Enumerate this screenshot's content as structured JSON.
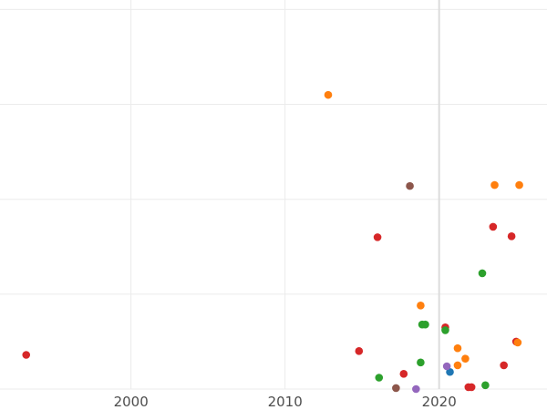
{
  "chart_data": {
    "type": "scatter",
    "title": "",
    "xlabel": "",
    "ylabel": "",
    "grid": true,
    "legend": "none",
    "xlim": [
      1991.5,
      2027
    ],
    "ylim": [
      0,
      41
    ],
    "xticks": [
      2000,
      2010,
      2020
    ],
    "xtick_labels": [
      "2000",
      "2010",
      "2020"
    ],
    "yticks": [
      0,
      10,
      20,
      30,
      40
    ],
    "series": [
      {
        "color": "#d62728",
        "points": [
          {
            "x": 1993.2,
            "y": 3.6
          },
          {
            "x": 2014.8,
            "y": 4.0
          },
          {
            "x": 2016.0,
            "y": 16.0
          },
          {
            "x": 2017.7,
            "y": 1.6
          },
          {
            "x": 2020.4,
            "y": 6.5
          },
          {
            "x": 2021.9,
            "y": 0.2
          },
          {
            "x": 2022.1,
            "y": 0.2
          },
          {
            "x": 2023.5,
            "y": 17.1
          },
          {
            "x": 2024.2,
            "y": 2.5
          },
          {
            "x": 2024.7,
            "y": 16.1
          },
          {
            "x": 2025.0,
            "y": 5.0
          }
        ]
      },
      {
        "color": "#ff7f0e",
        "points": [
          {
            "x": 2012.8,
            "y": 31.0
          },
          {
            "x": 2018.8,
            "y": 8.8
          },
          {
            "x": 2021.2,
            "y": 2.5
          },
          {
            "x": 2021.2,
            "y": 4.3
          },
          {
            "x": 2021.7,
            "y": 3.2
          },
          {
            "x": 2023.6,
            "y": 21.5
          },
          {
            "x": 2025.1,
            "y": 4.9
          },
          {
            "x": 2025.2,
            "y": 21.5
          }
        ]
      },
      {
        "color": "#2ca02c",
        "points": [
          {
            "x": 2016.1,
            "y": 1.2
          },
          {
            "x": 2018.8,
            "y": 2.8
          },
          {
            "x": 2018.9,
            "y": 6.8
          },
          {
            "x": 2019.1,
            "y": 6.8
          },
          {
            "x": 2020.4,
            "y": 6.2
          },
          {
            "x": 2022.8,
            "y": 12.2
          },
          {
            "x": 2023.0,
            "y": 0.4
          }
        ]
      },
      {
        "color": "#1f77b4",
        "points": [
          {
            "x": 2020.7,
            "y": 1.8
          }
        ]
      },
      {
        "color": "#9467bd",
        "points": [
          {
            "x": 2018.5,
            "y": 0.0
          },
          {
            "x": 2020.5,
            "y": 2.4
          }
        ]
      },
      {
        "color": "#8c564b",
        "points": [
          {
            "x": 2017.2,
            "y": 0.1
          },
          {
            "x": 2018.1,
            "y": 21.4
          }
        ]
      }
    ]
  }
}
